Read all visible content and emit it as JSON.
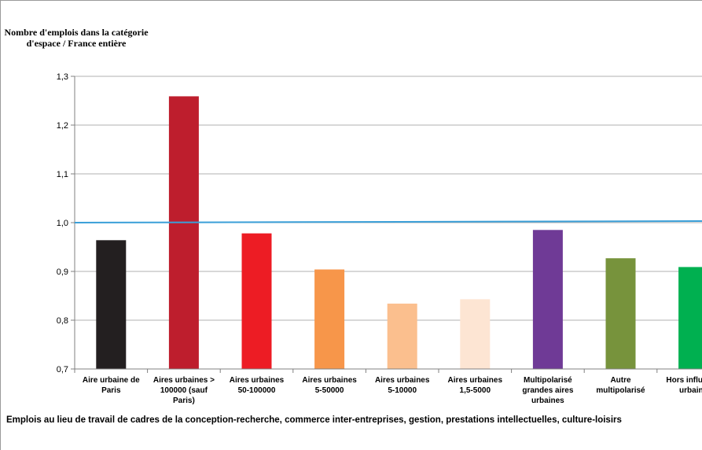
{
  "chart_data": {
    "type": "bar",
    "title": "",
    "ylabel": "Nombre d'emplois dans la catégorie d'espace / France entière",
    "xlabel": "",
    "ylim": [
      0.7,
      1.3
    ],
    "yticks": [
      "0,7",
      "0,8",
      "0,9",
      "1,0",
      "1,1",
      "1,2",
      "1,3"
    ],
    "grid": true,
    "categories": [
      [
        "Aire urbaine de",
        "Paris"
      ],
      [
        "Aires urbaines >",
        "100000 (sauf",
        "Paris)"
      ],
      [
        "Aires urbaines",
        "50-100000"
      ],
      [
        "Aires urbaines",
        "5-50000"
      ],
      [
        "Aires urbaines",
        "5-10000"
      ],
      [
        "Aires urbaines",
        "1,5-5000"
      ],
      [
        "Multipolarisé",
        "grandes aires",
        "urbaines"
      ],
      [
        "Autre",
        "multipolarisé"
      ],
      [
        "Hors influence",
        "urbaine"
      ]
    ],
    "values": [
      0.964,
      1.259,
      0.978,
      0.904,
      0.834,
      0.843,
      0.985,
      0.927,
      0.909
    ],
    "colors": [
      "#231f20",
      "#be1e2d",
      "#ed1c24",
      "#f7964a",
      "#fbbf8e",
      "#fde5d3",
      "#6f3a96",
      "#77933c",
      "#00b050"
    ],
    "reference_line": {
      "value": 1.0,
      "color": "#3a9fd8"
    }
  },
  "caption": "Emplois au lieu de travail de cadres de la conception-recherche, commerce inter-entreprises, gestion, prestations intellectuelles, culture-loisirs"
}
